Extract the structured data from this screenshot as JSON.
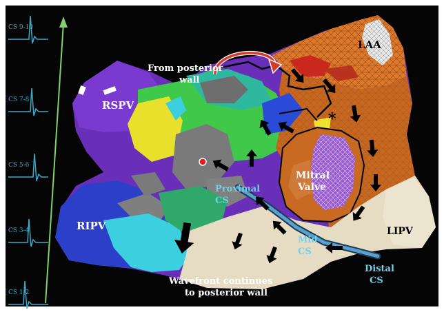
{
  "colors": {
    "background": "#050505",
    "egm_trace": "#3fa9c9",
    "axis_arrow": "#7fd36a",
    "arrow_fill": "#000000",
    "cs_catheter": "#5aa0c8",
    "white_text": "#ffffff",
    "cyan_text": "#6fd0e8"
  },
  "egm": {
    "labels": [
      "CS 9-10",
      "CS 7-8",
      "CS 5-6",
      "CS 3-4",
      "CS 1-2"
    ]
  },
  "annotations": {
    "laa": "LAA",
    "rspv": "RSPV",
    "ripv": "RIPV",
    "lipv": "LIPV",
    "mitral_line1": "Mitral",
    "mitral_line2": "Valve",
    "from_posterior_line1": "From posterior",
    "from_posterior_line2": "wall",
    "proximal_line1": "Proximal",
    "proximal_line2": "CS",
    "mid_line1": "Mid",
    "mid_line2": "CS",
    "distal_line1": "Distal",
    "distal_line2": "CS",
    "wavefront_line1": "Wavefront continues",
    "wavefront_line2": "to posterior wall",
    "asterisk": "*"
  },
  "icons": {
    "activation_arrow": "arrow-icon",
    "curved_arrow": "curved-arrow-icon",
    "ablation_dot": "ablation-point-icon"
  }
}
